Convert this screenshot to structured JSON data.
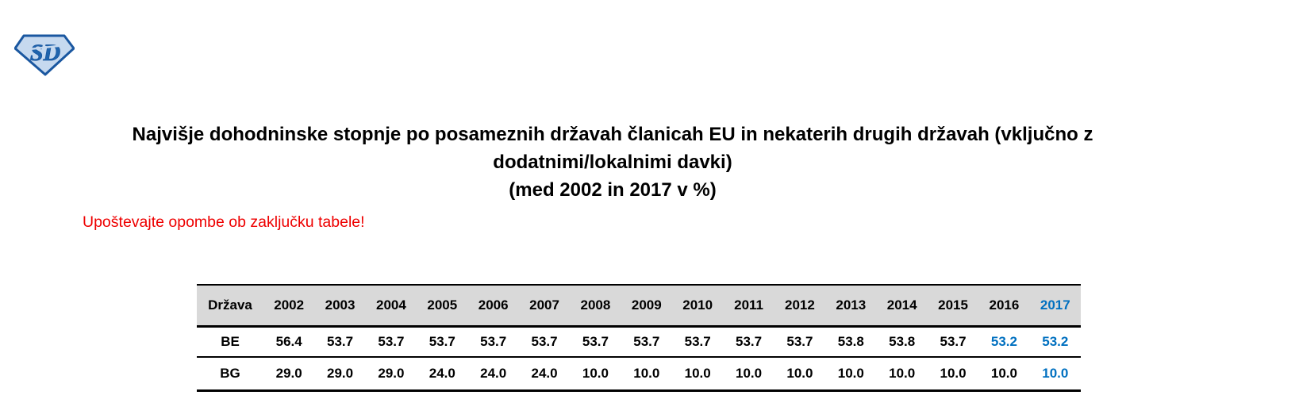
{
  "logo": {
    "text": "SD",
    "outline_color": "#1a57a0",
    "fill_color": "#c6d9ef",
    "letter_color": "#1f64ad"
  },
  "title": {
    "lines": [
      "Najvišje dohodninske stopnje po posameznih državah članicah EU in nekaterih drugih državah (vključno z",
      "dodatnimi/lokalnimi davki)",
      "(med 2002 in 2017 v %)"
    ]
  },
  "note": {
    "text": "Upoštevajte opombe ob zaključku tabele!",
    "color": "#ee0000"
  },
  "table": {
    "header_bg": "#d9d9d9",
    "highlight_color": "#0070c0",
    "columns": [
      "Država",
      "2002",
      "2003",
      "2004",
      "2005",
      "2006",
      "2007",
      "2008",
      "2009",
      "2010",
      "2011",
      "2012",
      "2013",
      "2014",
      "2015",
      "2016",
      "2017"
    ],
    "highlight_last_header": true,
    "rows": [
      {
        "label": "BE",
        "values": [
          "56.4",
          "53.7",
          "53.7",
          "53.7",
          "53.7",
          "53.7",
          "53.7",
          "53.7",
          "53.7",
          "53.7",
          "53.7",
          "53.8",
          "53.8",
          "53.7",
          "53.2",
          "53.2"
        ],
        "highlight_from": 14
      },
      {
        "label": "BG",
        "values": [
          "29.0",
          "29.0",
          "29.0",
          "24.0",
          "24.0",
          "24.0",
          "10.0",
          "10.0",
          "10.0",
          "10.0",
          "10.0",
          "10.0",
          "10.0",
          "10.0",
          "10.0",
          "10.0"
        ],
        "highlight_from": 15
      }
    ]
  }
}
